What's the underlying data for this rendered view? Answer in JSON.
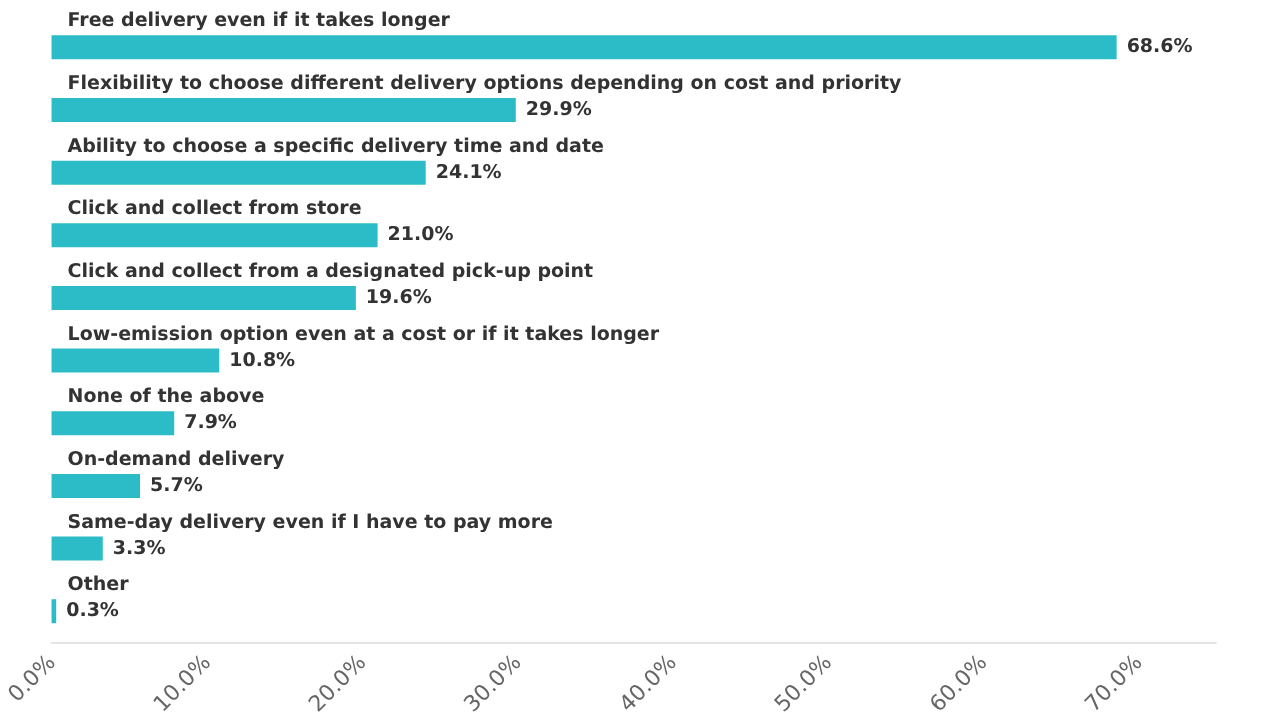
{
  "chart_data": {
    "type": "bar",
    "orientation": "horizontal",
    "categories": [
      "Free delivery even if it takes longer",
      "Flexibility to choose different delivery options depending on cost and priority",
      "Ability to choose a specific delivery time and date",
      "Click and collect from store",
      "Click and collect from a designated pick-up point",
      "Low-emission option even at a cost or if it takes longer",
      "None of the above",
      "On-demand delivery",
      "Same-day delivery even if I have to pay more",
      "Other"
    ],
    "values": [
      68.6,
      29.9,
      24.1,
      21.0,
      19.6,
      10.8,
      7.9,
      5.7,
      3.3,
      0.3
    ],
    "value_labels": [
      "68.6%",
      "29.9%",
      "24.1%",
      "21.0%",
      "19.6%",
      "10.8%",
      "7.9%",
      "5.7%",
      "3.3%",
      "0.3%"
    ],
    "color": "#2cbcc7",
    "xlim": [
      0,
      75
    ],
    "xticks": [
      {
        "value": 0,
        "label": "0.0%"
      },
      {
        "value": 10,
        "label": "10.0%"
      },
      {
        "value": 20,
        "label": "20.0%"
      },
      {
        "value": 30,
        "label": "30.0%"
      },
      {
        "value": 40,
        "label": "40.0%"
      },
      {
        "value": 50,
        "label": "50.0%"
      },
      {
        "value": 60,
        "label": "60.0%"
      },
      {
        "value": 70,
        "label": "70.0%"
      }
    ],
    "grid": false
  }
}
